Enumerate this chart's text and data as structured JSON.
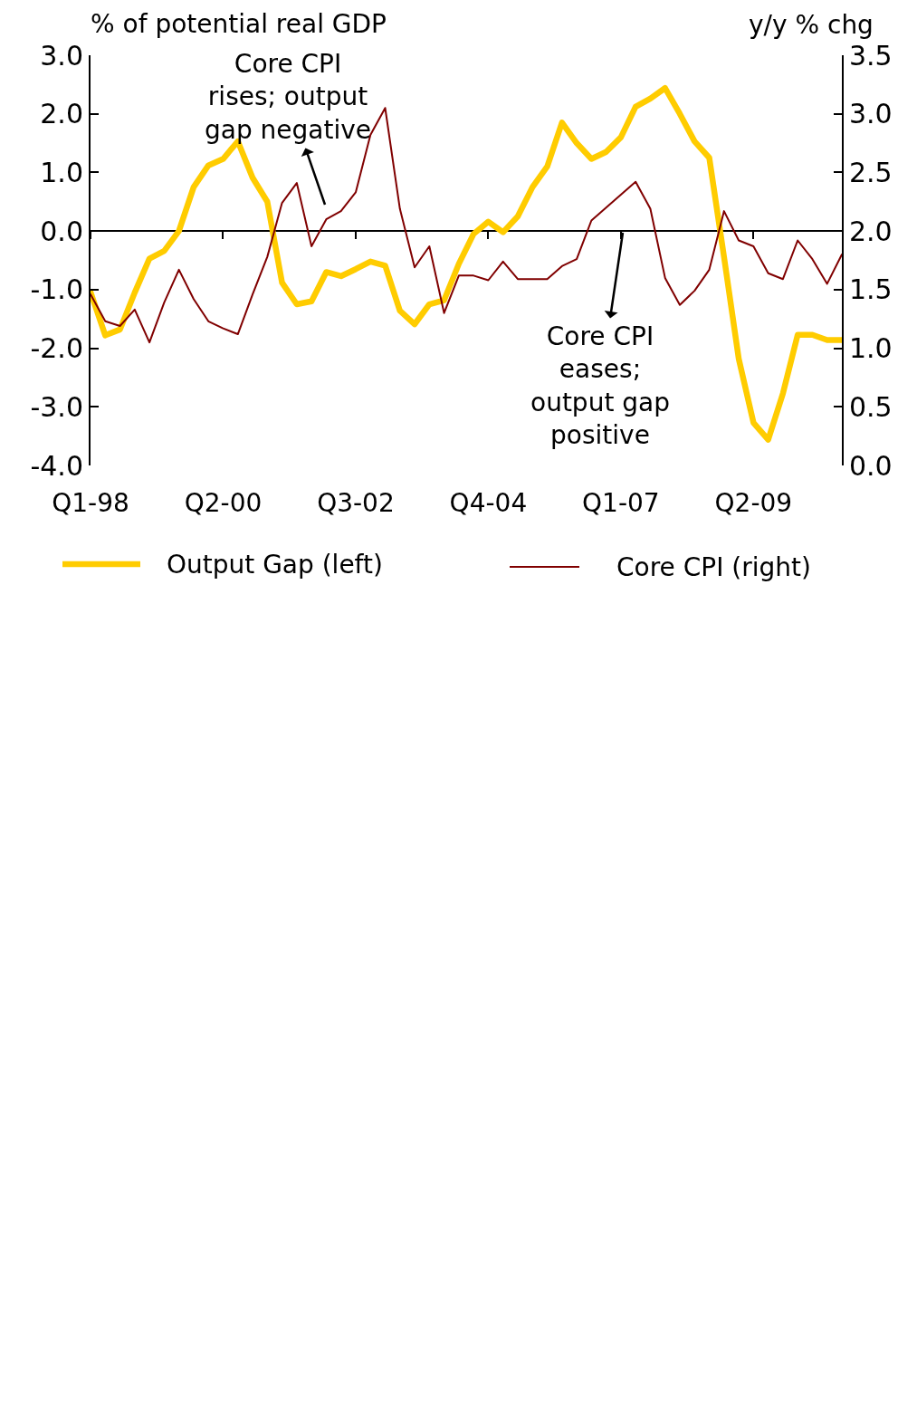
{
  "chart_data": {
    "type": "line",
    "ylabel": "% of potential real GDP",
    "y2label": "y/y % chg",
    "categories": [
      "Q1-98",
      null,
      null,
      null,
      null,
      null,
      null,
      null,
      null,
      "Q2-00",
      null,
      null,
      null,
      null,
      null,
      null,
      null,
      null,
      "Q3-02",
      null,
      null,
      null,
      null,
      null,
      null,
      null,
      null,
      "Q4-04",
      null,
      null,
      null,
      null,
      null,
      null,
      null,
      null,
      "Q1-07",
      null,
      null,
      null,
      null,
      null,
      null,
      null,
      null,
      "Q2-09",
      null,
      null,
      null,
      null,
      null,
      null
    ],
    "series": [
      {
        "name": "Output Gap (left)",
        "color": "#ffcc00",
        "values": [
          -1.04,
          -1.78,
          -1.68,
          -1.05,
          -0.47,
          -0.34,
          0.0,
          0.75,
          1.12,
          1.23,
          1.53,
          0.91,
          0.5,
          -0.88,
          -1.25,
          -1.2,
          -0.7,
          -0.77,
          -0.65,
          -0.52,
          -0.59,
          -1.36,
          -1.59,
          -1.25,
          -1.18,
          -0.56,
          -0.05,
          0.16,
          -0.02,
          0.25,
          0.75,
          1.1,
          1.85,
          1.5,
          1.23,
          1.35,
          1.6,
          2.12,
          2.26,
          2.44,
          2.0,
          1.53,
          1.25,
          -0.44,
          -2.18,
          -3.27,
          -3.56,
          -2.77,
          -1.77,
          -1.77,
          -1.86,
          -1.86
        ]
      },
      {
        "name": "Core CPI (right)",
        "color": "#800000",
        "axis": "y2",
        "values": [
          1.46,
          1.23,
          1.19,
          1.33,
          1.05,
          1.39,
          1.67,
          1.42,
          1.23,
          1.17,
          1.12,
          1.46,
          1.78,
          2.24,
          2.41,
          1.87,
          2.1,
          2.17,
          2.33,
          2.82,
          3.05,
          2.19,
          1.69,
          1.87,
          1.3,
          1.62,
          1.62,
          1.58,
          1.74,
          1.59,
          1.59,
          1.59,
          1.7,
          1.76,
          2.09,
          2.2,
          2.31,
          2.42,
          2.19,
          1.6,
          1.37,
          1.49,
          1.67,
          2.17,
          1.92,
          1.87,
          1.64,
          1.59,
          1.92,
          1.76,
          1.55,
          1.8
        ]
      }
    ],
    "ylim": [
      -4.0,
      3.0
    ],
    "yticks": [
      {
        "value": -4,
        "label": "-4.0"
      },
      {
        "value": -3,
        "label": "-3.0"
      },
      {
        "value": -2,
        "label": "-2.0"
      },
      {
        "value": -1,
        "label": "-1.0"
      },
      {
        "value": 0,
        "label": "0.0"
      },
      {
        "value": 1,
        "label": "1.0"
      },
      {
        "value": 2,
        "label": "2.0"
      },
      {
        "value": 3,
        "label": "3.0"
      }
    ],
    "y2lim": [
      0.0,
      3.5
    ],
    "y2ticks": [
      {
        "value": 0,
        "label": "0.0"
      },
      {
        "value": 0.5,
        "label": "0.5"
      },
      {
        "value": 1,
        "label": "1.0"
      },
      {
        "value": 1.5,
        "label": "1.5"
      },
      {
        "value": 2,
        "label": "2.0"
      },
      {
        "value": 2.5,
        "label": "2.5"
      },
      {
        "value": 3,
        "label": "3.0"
      },
      {
        "value": 3.5,
        "label": "3.5"
      }
    ],
    "annotations": [
      "Core CPI\nrises; output\ngap negative",
      "Core CPI\neases;\noutput gap\npositive"
    ],
    "legend": "bottom"
  }
}
